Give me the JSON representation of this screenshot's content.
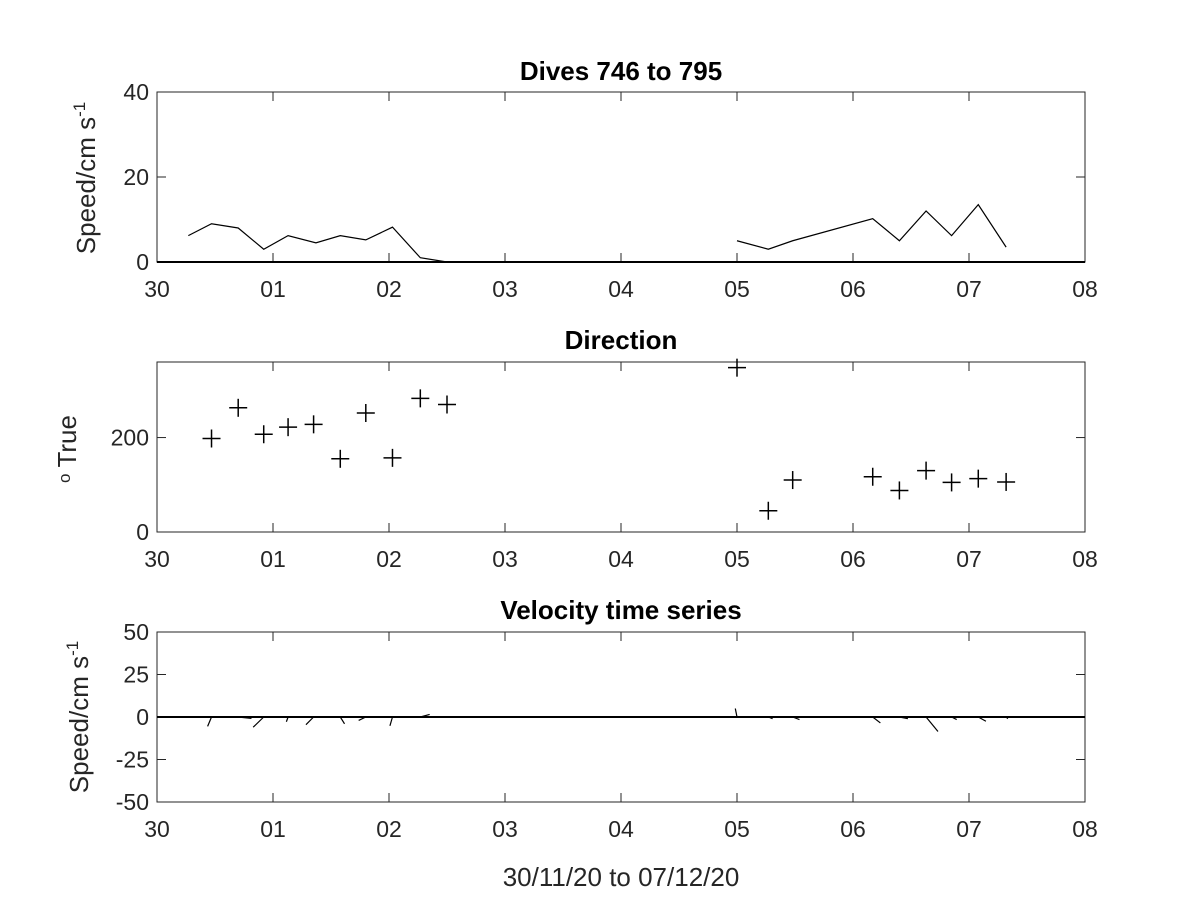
{
  "chart_data": [
    {
      "type": "line",
      "title": "Dives 746 to 795",
      "ylabel": "Speed/cm s",
      "ylabel_superscript": "-1",
      "ylim": [
        0,
        40
      ],
      "yticks": [
        0,
        20,
        40
      ],
      "xlim": [
        0,
        7
      ],
      "xticks": [
        "30",
        "01",
        "02",
        "03",
        "04",
        "05",
        "06",
        "07",
        "08"
      ],
      "segments": [
        {
          "x": [
            0.27,
            0.47,
            0.7,
            0.92,
            1.13,
            1.37,
            1.58,
            1.8,
            2.03,
            2.27,
            2.5
          ],
          "y": [
            6.2,
            9.0,
            8.0,
            3.0,
            6.2,
            4.5,
            6.2,
            5.2,
            8.2,
            1.0,
            0
          ]
        },
        {
          "x": [
            5.0,
            5.27,
            5.48,
            6.17,
            6.4,
            6.63,
            6.85,
            7.08,
            7.32
          ],
          "y": [
            5.0,
            3.0,
            5.0,
            10.2,
            5.0,
            12.0,
            6.2,
            13.5,
            3.5
          ]
        }
      ],
      "baseline": 0
    },
    {
      "type": "scatter",
      "title": "Direction",
      "ylabel": "o True",
      "ylim": [
        0,
        360
      ],
      "yticks": [
        0,
        200
      ],
      "xlim": [
        0,
        7
      ],
      "xticks": [
        "30",
        "01",
        "02",
        "03",
        "04",
        "05",
        "06",
        "07",
        "08"
      ],
      "x": [
        0.47,
        0.7,
        0.92,
        1.13,
        1.35,
        1.58,
        1.8,
        2.03,
        2.27,
        2.5,
        5.0,
        5.27,
        5.48,
        6.17,
        6.4,
        6.63,
        6.85,
        7.08,
        7.32
      ],
      "y": [
        198,
        263,
        207,
        222,
        228,
        155,
        252,
        157,
        283,
        270,
        348,
        45,
        110,
        117,
        88,
        130,
        105,
        113,
        106
      ]
    },
    {
      "type": "stick",
      "title": "Velocity time series",
      "ylabel": "Speed/cm s",
      "ylabel_superscript": "-1",
      "xlabel": "30/11/20 to 07/12/20",
      "ylim": [
        -50,
        50
      ],
      "yticks": [
        50,
        25,
        0,
        -25,
        -50
      ],
      "xlim": [
        0,
        7
      ],
      "xticks": [
        "30",
        "01",
        "02",
        "03",
        "04",
        "05",
        "06",
        "07",
        "08"
      ],
      "x": [
        0.47,
        0.7,
        0.92,
        1.13,
        1.35,
        1.58,
        1.8,
        2.03,
        2.27,
        2.5,
        5.0,
        5.27,
        5.48,
        6.17,
        6.4,
        6.63,
        6.85,
        7.08,
        7.32
      ],
      "u": [
        -2.3,
        7.8,
        -6.2,
        -1.0,
        -4.5,
        2.5,
        -4.2,
        -1.5,
        5.5,
        0.0,
        -1.0,
        2.5,
        4.0,
        4.5,
        5.0,
        7.0,
        3.0,
        4.5,
        1.0
      ],
      "v": [
        -5.5,
        -0.8,
        -6.0,
        -2.8,
        -4.5,
        -4.0,
        -2.0,
        -5.2,
        1.5,
        0.0,
        5.0,
        -1.0,
        -1.5,
        -3.5,
        -1.0,
        -8.5,
        -1.5,
        -2.5,
        -1.0
      ]
    }
  ]
}
